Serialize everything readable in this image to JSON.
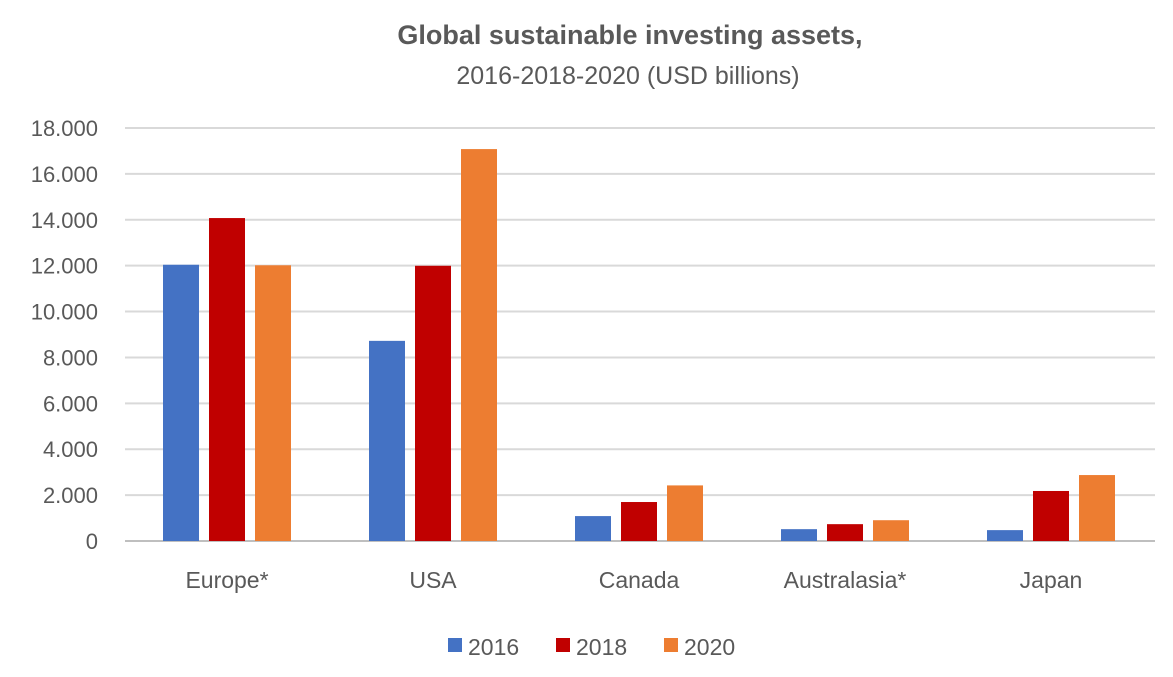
{
  "chart_data": {
    "type": "bar",
    "title": "Global sustainable investing assets,",
    "subtitle": "2016-2018-2020 (USD billions)",
    "xlabel": "",
    "ylabel": "",
    "categories": [
      "Europe*",
      "USA",
      "Canada",
      "Australasia*",
      "Japan"
    ],
    "series": [
      {
        "name": "2016",
        "color": "#4472C4",
        "values": [
          12040,
          8723,
          1086,
          516,
          474
        ]
      },
      {
        "name": "2018",
        "color": "#C00000",
        "values": [
          14075,
          11995,
          1699,
          734,
          2180
        ]
      },
      {
        "name": "2020",
        "color": "#ED7D31",
        "values": [
          12017,
          17081,
          2423,
          906,
          2874
        ]
      }
    ],
    "ylim": [
      0,
      18000
    ],
    "yticks": [
      0,
      2000,
      4000,
      6000,
      8000,
      10000,
      12000,
      14000,
      16000,
      18000
    ],
    "ytick_labels": [
      "0",
      "2.000",
      "4.000",
      "6.000",
      "8.000",
      "10.000",
      "12.000",
      "14.000",
      "16.000",
      "18.000"
    ],
    "grid": true,
    "legend": "bottom-center"
  }
}
